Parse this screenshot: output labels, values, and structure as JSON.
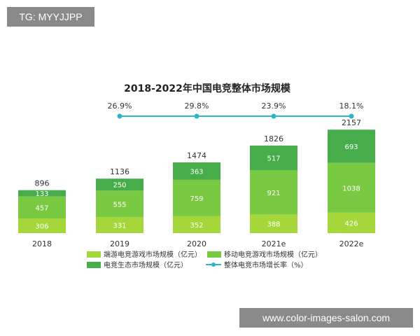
{
  "watermarks": {
    "top": "TG: MYYJJPP",
    "bottom": "www.color-images-salon.com"
  },
  "chart_data": {
    "type": "bar",
    "stacked": true,
    "title": "2018-2022年中国电竞整体市场规模",
    "categories": [
      "2018",
      "2019",
      "2020",
      "2021e",
      "2022e"
    ],
    "series": [
      {
        "name": "端游电竞游戏市场规模（亿元）",
        "values": [
          306,
          331,
          352,
          388,
          426
        ],
        "color": "#a5d63a"
      },
      {
        "name": "移动电竞游戏市场规模（亿元）",
        "values": [
          457,
          555,
          759,
          921,
          1038
        ],
        "color": "#7ac943"
      },
      {
        "name": "电竞生态市场规模（亿元）",
        "values": [
          133,
          250,
          363,
          517,
          693
        ],
        "color": "#47ad4a"
      }
    ],
    "totals": [
      896,
      1136,
      1474,
      1826,
      2157
    ],
    "growth": {
      "name": "整体电竞市场增长率（%）",
      "color": "#2fb3c8",
      "categories": [
        "2019",
        "2020",
        "2021e",
        "2022e"
      ],
      "values": [
        26.9,
        29.8,
        23.9,
        18.1
      ],
      "labels": [
        "26.9%",
        "29.8%",
        "23.9%",
        "18.1%"
      ]
    },
    "legend_position": "bottom"
  }
}
